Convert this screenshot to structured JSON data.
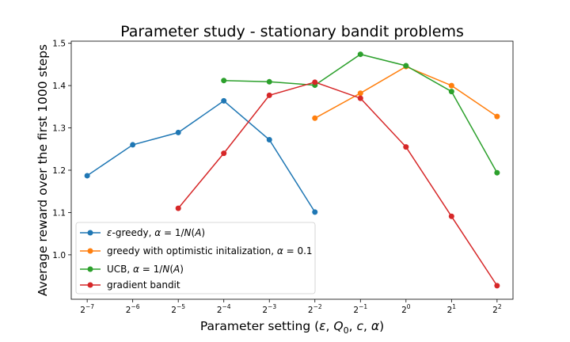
{
  "chart_data": {
    "type": "line",
    "title": "Parameter study - stationary bandit problems",
    "xlabel": {
      "prefix": "Parameter setting (",
      "eps": "ε",
      "sep1": ", ",
      "q": "Q",
      "q_sub": "0",
      "sep2": ", ",
      "c": "c",
      "sep3": ", ",
      "alpha": "α",
      "suffix": ")"
    },
    "ylabel": "Average reward over the first 1000 steps",
    "x_scale": "log2",
    "x_ticks": [
      {
        "base": "2",
        "exp": "−7",
        "value": -7
      },
      {
        "base": "2",
        "exp": "−6",
        "value": -6
      },
      {
        "base": "2",
        "exp": "−5",
        "value": -5
      },
      {
        "base": "2",
        "exp": "−4",
        "value": -4
      },
      {
        "base": "2",
        "exp": "−3",
        "value": -3
      },
      {
        "base": "2",
        "exp": "−2",
        "value": -2
      },
      {
        "base": "2",
        "exp": "−1",
        "value": -1
      },
      {
        "base": "2",
        "exp": "0",
        "value": 0
      },
      {
        "base": "2",
        "exp": "1",
        "value": 1
      },
      {
        "base": "2",
        "exp": "2",
        "value": 2
      }
    ],
    "xlim": [
      -7.35,
      2.35
    ],
    "y_ticks": [
      {
        "label": "1.0",
        "value": 1.0
      },
      {
        "label": "1.1",
        "value": 1.1
      },
      {
        "label": "1.2",
        "value": 1.2
      },
      {
        "label": "1.3",
        "value": 1.3
      },
      {
        "label": "1.4",
        "value": 1.4
      },
      {
        "label": "1.5",
        "value": 1.5
      }
    ],
    "ylim": [
      0.895,
      1.505
    ],
    "legend_position": "lower-left",
    "series": [
      {
        "name": "epsilon-greedy",
        "legend": {
          "eps": "ε",
          "mid": "-greedy, ",
          "a": "α",
          "eq": " = 1/",
          "N": "N",
          "po": "(",
          "A": "A",
          "pc": ")"
        },
        "color": "#1f77b4",
        "x": [
          -7,
          -6,
          -5,
          -4,
          -3,
          -2
        ],
        "y": [
          1.187,
          1.26,
          1.289,
          1.364,
          1.272,
          1.101
        ]
      },
      {
        "name": "greedy-optimistic",
        "legend": {
          "pre": "greedy with optimistic initalization, ",
          "a": "α",
          "eq": " = 0.1"
        },
        "color": "#ff7f0e",
        "x": [
          -2,
          -1,
          0,
          1,
          2
        ],
        "y": [
          1.323,
          1.382,
          1.445,
          1.4,
          1.327
        ]
      },
      {
        "name": "ucb",
        "legend": {
          "pre": "UCB, ",
          "a": "α",
          "eq": " = 1/",
          "N": "N",
          "po": "(",
          "A": "A",
          "pc": ")"
        },
        "color": "#2ca02c",
        "x": [
          -4,
          -3,
          -2,
          -1,
          0,
          1,
          2
        ],
        "y": [
          1.412,
          1.409,
          1.401,
          1.474,
          1.447,
          1.386,
          1.194
        ]
      },
      {
        "name": "gradient-bandit",
        "legend": {
          "pre": "gradient bandit"
        },
        "color": "#d62728",
        "x": [
          -5,
          -4,
          -3,
          -2,
          -1,
          0,
          1,
          2
        ],
        "y": [
          1.11,
          1.24,
          1.377,
          1.408,
          1.37,
          1.255,
          1.091,
          0.927
        ]
      }
    ]
  }
}
